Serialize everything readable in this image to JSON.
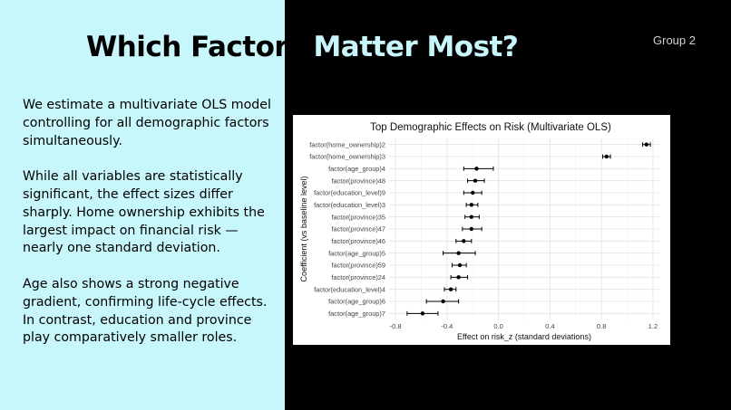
{
  "slide": {
    "title_part1": "Which Factors ",
    "title_part2": "Matter Most?",
    "group_label": "Group 2",
    "paragraphs": [
      "We estimate a multivariate OLS model controlling for all demographic factors simultaneously.",
      "While all variables are statistically significant, the effect sizes differ sharply. Home ownership exhibits the largest impact on financial risk — nearly one standard deviation.",
      "Age also shows a strong negative gradient, confirming life-cycle effects. In contrast, education and province play comparatively smaller roles."
    ]
  },
  "colors": {
    "left_background": "#c7f6fb",
    "right_background": "#000000",
    "point_color": "#000000"
  },
  "chart_data": {
    "type": "scatter",
    "subtype": "coefficient-plot",
    "title": "Top Demographic Effects on Risk (Multivariate OLS)",
    "xlabel": "Effect on risk_z (standard deviations)",
    "ylabel": "Coefficient (vs baseline level)",
    "xlim": [
      -0.85,
      1.25
    ],
    "xticks": [
      -0.8,
      -0.4,
      0.0,
      0.4,
      0.8,
      1.2
    ],
    "xtick_labels": [
      "-0.8",
      "-0.4",
      "0.0",
      "0.4",
      "0.8",
      "1.2"
    ],
    "grid": true,
    "legend": "none",
    "categories": [
      "factor(home_ownership)2",
      "factor(home_ownership)3",
      "factor(age_group)4",
      "factor(province)48",
      "factor(education_level)9",
      "factor(education_level)3",
      "factor(province)35",
      "factor(province)47",
      "factor(province)46",
      "factor(age_group)5",
      "factor(province)59",
      "factor(province)24",
      "factor(education_level)4",
      "factor(age_group)6",
      "factor(age_group)7"
    ],
    "estimates": [
      1.15,
      0.84,
      -0.17,
      -0.18,
      -0.2,
      -0.21,
      -0.21,
      -0.21,
      -0.27,
      -0.31,
      -0.3,
      -0.31,
      -0.37,
      -0.43,
      -0.59
    ],
    "ci_low": [
      1.12,
      0.81,
      -0.27,
      -0.24,
      -0.27,
      -0.25,
      -0.26,
      -0.28,
      -0.33,
      -0.43,
      -0.36,
      -0.37,
      -0.42,
      -0.56,
      -0.71
    ],
    "ci_high": [
      1.18,
      0.87,
      -0.04,
      -0.11,
      -0.13,
      -0.16,
      -0.15,
      -0.13,
      -0.21,
      -0.18,
      -0.25,
      -0.24,
      -0.33,
      -0.31,
      -0.47
    ]
  }
}
